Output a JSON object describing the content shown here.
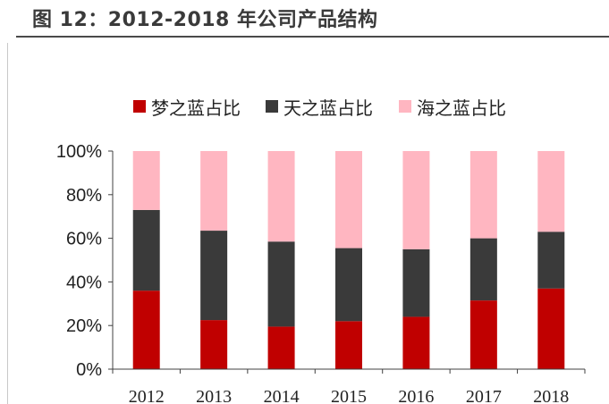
{
  "figure": {
    "title": "图 12：2012-2018 年公司产品结构"
  },
  "colors": {
    "series": [
      "#c00000",
      "#3a3a3a",
      "#ffb6c1"
    ],
    "axis": "#404040",
    "text": "#222222"
  },
  "chart_data": {
    "type": "bar",
    "stacked": true,
    "categories": [
      "2012",
      "2013",
      "2014",
      "2015",
      "2016",
      "2017",
      "2018"
    ],
    "series": [
      {
        "name": "梦之蓝占比",
        "values": [
          0.36,
          0.225,
          0.195,
          0.22,
          0.24,
          0.315,
          0.37
        ]
      },
      {
        "name": "天之蓝占比",
        "values": [
          0.37,
          0.41,
          0.39,
          0.335,
          0.31,
          0.285,
          0.26
        ]
      },
      {
        "name": "海之蓝占比",
        "values": [
          0.27,
          0.365,
          0.415,
          0.445,
          0.45,
          0.4,
          0.37
        ]
      }
    ],
    "ylim": [
      0,
      1
    ],
    "yticks": [
      "0%",
      "20%",
      "40%",
      "60%",
      "80%",
      "100%"
    ],
    "xlabel": "",
    "ylabel": "",
    "grid": false,
    "legend_position": "top"
  }
}
